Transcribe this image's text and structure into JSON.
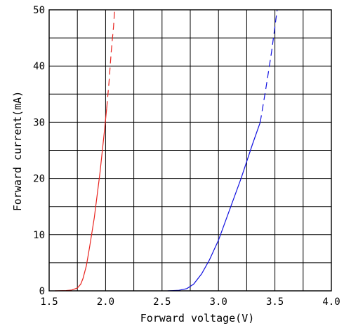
{
  "chart_data": {
    "type": "line",
    "title": "",
    "xlabel": "Forward voltage(V)",
    "ylabel": "Forward current(mA)",
    "xlim": [
      1.5,
      4.0
    ],
    "ylim": [
      0,
      50
    ],
    "grid": true,
    "x_ticks": [
      {
        "value": 1.5,
        "label": "1.5"
      },
      {
        "value": 2.0,
        "label": "2.0"
      },
      {
        "value": 2.5,
        "label": "2.5"
      },
      {
        "value": 3.0,
        "label": "3.0"
      },
      {
        "value": 3.5,
        "label": "3.5"
      },
      {
        "value": 4.0,
        "label": "4.0"
      }
    ],
    "x_grid_step": 0.25,
    "y_ticks": [
      {
        "value": 0,
        "label": "0"
      },
      {
        "value": 10,
        "label": "10"
      },
      {
        "value": 20,
        "label": "20"
      },
      {
        "value": 30,
        "label": "30"
      },
      {
        "value": 40,
        "label": "40"
      },
      {
        "value": 50,
        "label": "50"
      }
    ],
    "y_grid_step": 5,
    "series": [
      {
        "color": "#e8231e",
        "solid": [
          [
            1.55,
            0.0
          ],
          [
            1.65,
            0.05
          ],
          [
            1.7,
            0.15
          ],
          [
            1.75,
            0.5
          ],
          [
            1.78,
            1.2
          ],
          [
            1.8,
            2.2
          ],
          [
            1.83,
            4.5
          ],
          [
            1.86,
            8.0
          ],
          [
            1.9,
            13.0
          ],
          [
            1.95,
            21.0
          ],
          [
            1.99,
            28.5
          ],
          [
            2.01,
            32.5
          ]
        ],
        "dashed": [
          [
            2.01,
            32.5
          ],
          [
            2.03,
            37.0
          ],
          [
            2.05,
            42.5
          ],
          [
            2.07,
            47.0
          ],
          [
            2.08,
            50.0
          ]
        ]
      },
      {
        "color": "#1010e0",
        "solid": [
          [
            2.55,
            0.0
          ],
          [
            2.65,
            0.1
          ],
          [
            2.72,
            0.4
          ],
          [
            2.78,
            1.2
          ],
          [
            2.85,
            3.0
          ],
          [
            2.92,
            5.5
          ],
          [
            3.0,
            9.0
          ],
          [
            3.1,
            14.5
          ],
          [
            3.2,
            20.0
          ],
          [
            3.3,
            26.0
          ],
          [
            3.37,
            30.0
          ]
        ],
        "dashed": [
          [
            3.37,
            30.0
          ],
          [
            3.42,
            36.0
          ],
          [
            3.47,
            42.5
          ],
          [
            3.5,
            47.0
          ],
          [
            3.52,
            50.0
          ]
        ]
      }
    ]
  }
}
